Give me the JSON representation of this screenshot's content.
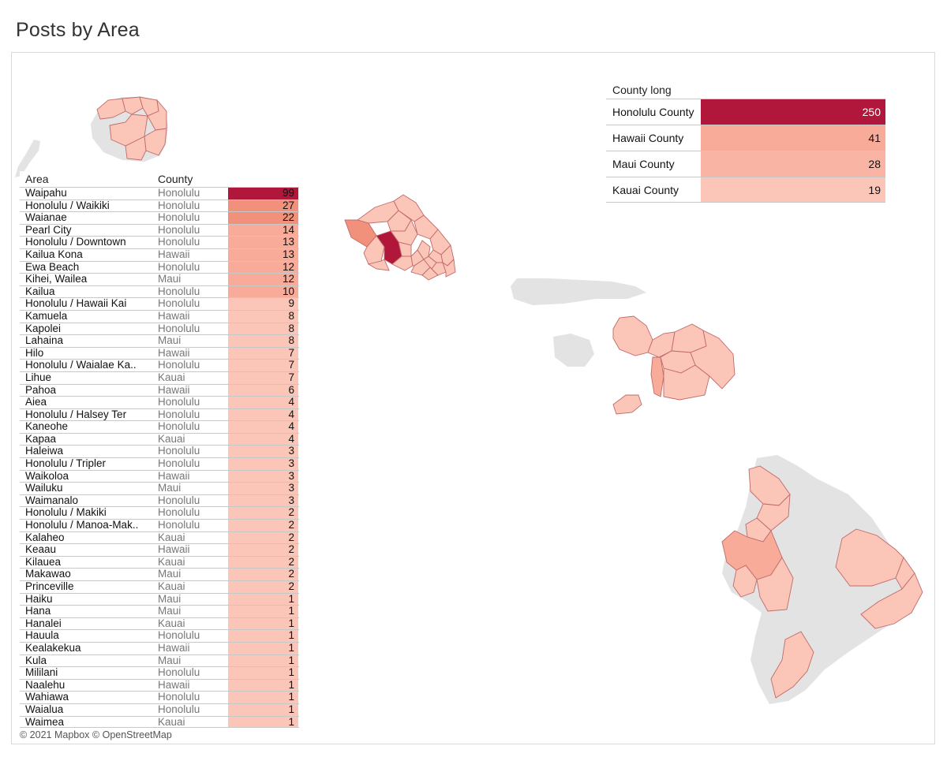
{
  "title": "Posts by Area",
  "attribution": "© 2021 Mapbox © OpenStreetMap",
  "colors": {
    "max": "#b0173a",
    "high": "#f1917c",
    "mid": "#f7ab98",
    "low": "#fbc5b8",
    "land_grey": "#e3e3e3",
    "border": "#c06a6a"
  },
  "area_table": {
    "headers": {
      "area": "Area",
      "county": "County"
    },
    "rows": [
      {
        "area": "Waipahu",
        "county": "Honolulu",
        "posts": 99
      },
      {
        "area": "Honolulu / Waikiki",
        "county": "Honolulu",
        "posts": 27
      },
      {
        "area": "Waianae",
        "county": "Honolulu",
        "posts": 22
      },
      {
        "area": "Pearl City",
        "county": "Honolulu",
        "posts": 14
      },
      {
        "area": "Honolulu / Downtown",
        "county": "Honolulu",
        "posts": 13
      },
      {
        "area": "Kailua Kona",
        "county": "Hawaii",
        "posts": 13
      },
      {
        "area": "Ewa Beach",
        "county": "Honolulu",
        "posts": 12
      },
      {
        "area": "Kihei, Wailea",
        "county": "Maui",
        "posts": 12
      },
      {
        "area": "Kailua",
        "county": "Honolulu",
        "posts": 10
      },
      {
        "area": "Honolulu / Hawaii Kai",
        "county": "Honolulu",
        "posts": 9
      },
      {
        "area": "Kamuela",
        "county": "Hawaii",
        "posts": 8
      },
      {
        "area": "Kapolei",
        "county": "Honolulu",
        "posts": 8
      },
      {
        "area": "Lahaina",
        "county": "Maui",
        "posts": 8
      },
      {
        "area": "Hilo",
        "county": "Hawaii",
        "posts": 7
      },
      {
        "area": "Honolulu / Waialae Ka..",
        "county": "Honolulu",
        "posts": 7
      },
      {
        "area": "Lihue",
        "county": "Kauai",
        "posts": 7
      },
      {
        "area": "Pahoa",
        "county": "Hawaii",
        "posts": 6
      },
      {
        "area": "Aiea",
        "county": "Honolulu",
        "posts": 4
      },
      {
        "area": "Honolulu / Halsey Ter",
        "county": "Honolulu",
        "posts": 4
      },
      {
        "area": "Kaneohe",
        "county": "Honolulu",
        "posts": 4
      },
      {
        "area": "Kapaa",
        "county": "Kauai",
        "posts": 4
      },
      {
        "area": "Haleiwa",
        "county": "Honolulu",
        "posts": 3
      },
      {
        "area": "Honolulu / Tripler",
        "county": "Honolulu",
        "posts": 3
      },
      {
        "area": "Waikoloa",
        "county": "Hawaii",
        "posts": 3
      },
      {
        "area": "Wailuku",
        "county": "Maui",
        "posts": 3
      },
      {
        "area": "Waimanalo",
        "county": "Honolulu",
        "posts": 3
      },
      {
        "area": "Honolulu / Makiki",
        "county": "Honolulu",
        "posts": 2
      },
      {
        "area": "Honolulu / Manoa-Mak..",
        "county": "Honolulu",
        "posts": 2
      },
      {
        "area": "Kalaheo",
        "county": "Kauai",
        "posts": 2
      },
      {
        "area": "Keaau",
        "county": "Hawaii",
        "posts": 2
      },
      {
        "area": "Kilauea",
        "county": "Kauai",
        "posts": 2
      },
      {
        "area": "Makawao",
        "county": "Maui",
        "posts": 2
      },
      {
        "area": "Princeville",
        "county": "Kauai",
        "posts": 2
      },
      {
        "area": "Haiku",
        "county": "Maui",
        "posts": 1
      },
      {
        "area": "Hana",
        "county": "Maui",
        "posts": 1
      },
      {
        "area": "Hanalei",
        "county": "Kauai",
        "posts": 1
      },
      {
        "area": "Hauula",
        "county": "Honolulu",
        "posts": 1
      },
      {
        "area": "Kealakekua",
        "county": "Hawaii",
        "posts": 1
      },
      {
        "area": "Kula",
        "county": "Maui",
        "posts": 1
      },
      {
        "area": "Mililani",
        "county": "Honolulu",
        "posts": 1
      },
      {
        "area": "Naalehu",
        "county": "Hawaii",
        "posts": 1
      },
      {
        "area": "Wahiawa",
        "county": "Honolulu",
        "posts": 1
      },
      {
        "area": "Waialua",
        "county": "Honolulu",
        "posts": 1
      },
      {
        "area": "Waimea",
        "county": "Kauai",
        "posts": 1
      }
    ]
  },
  "county_table": {
    "header": "County  long",
    "rows": [
      {
        "county": "Honolulu County",
        "posts": 250
      },
      {
        "county": "Hawaii County",
        "posts": 41
      },
      {
        "county": "Maui County",
        "posts": 28
      },
      {
        "county": "Kauai County",
        "posts": 19
      }
    ]
  },
  "map": {
    "islands": [
      {
        "name": "Kauai",
        "shaded": true
      },
      {
        "name": "Niihau",
        "shaded": false
      },
      {
        "name": "Oahu",
        "shaded": true
      },
      {
        "name": "Molokai",
        "shaded": false
      },
      {
        "name": "Lanai",
        "shaded": false
      },
      {
        "name": "Maui",
        "shaded": true
      },
      {
        "name": "Kahoolawe",
        "shaded": true
      },
      {
        "name": "Hawaii",
        "shaded": true
      }
    ]
  }
}
